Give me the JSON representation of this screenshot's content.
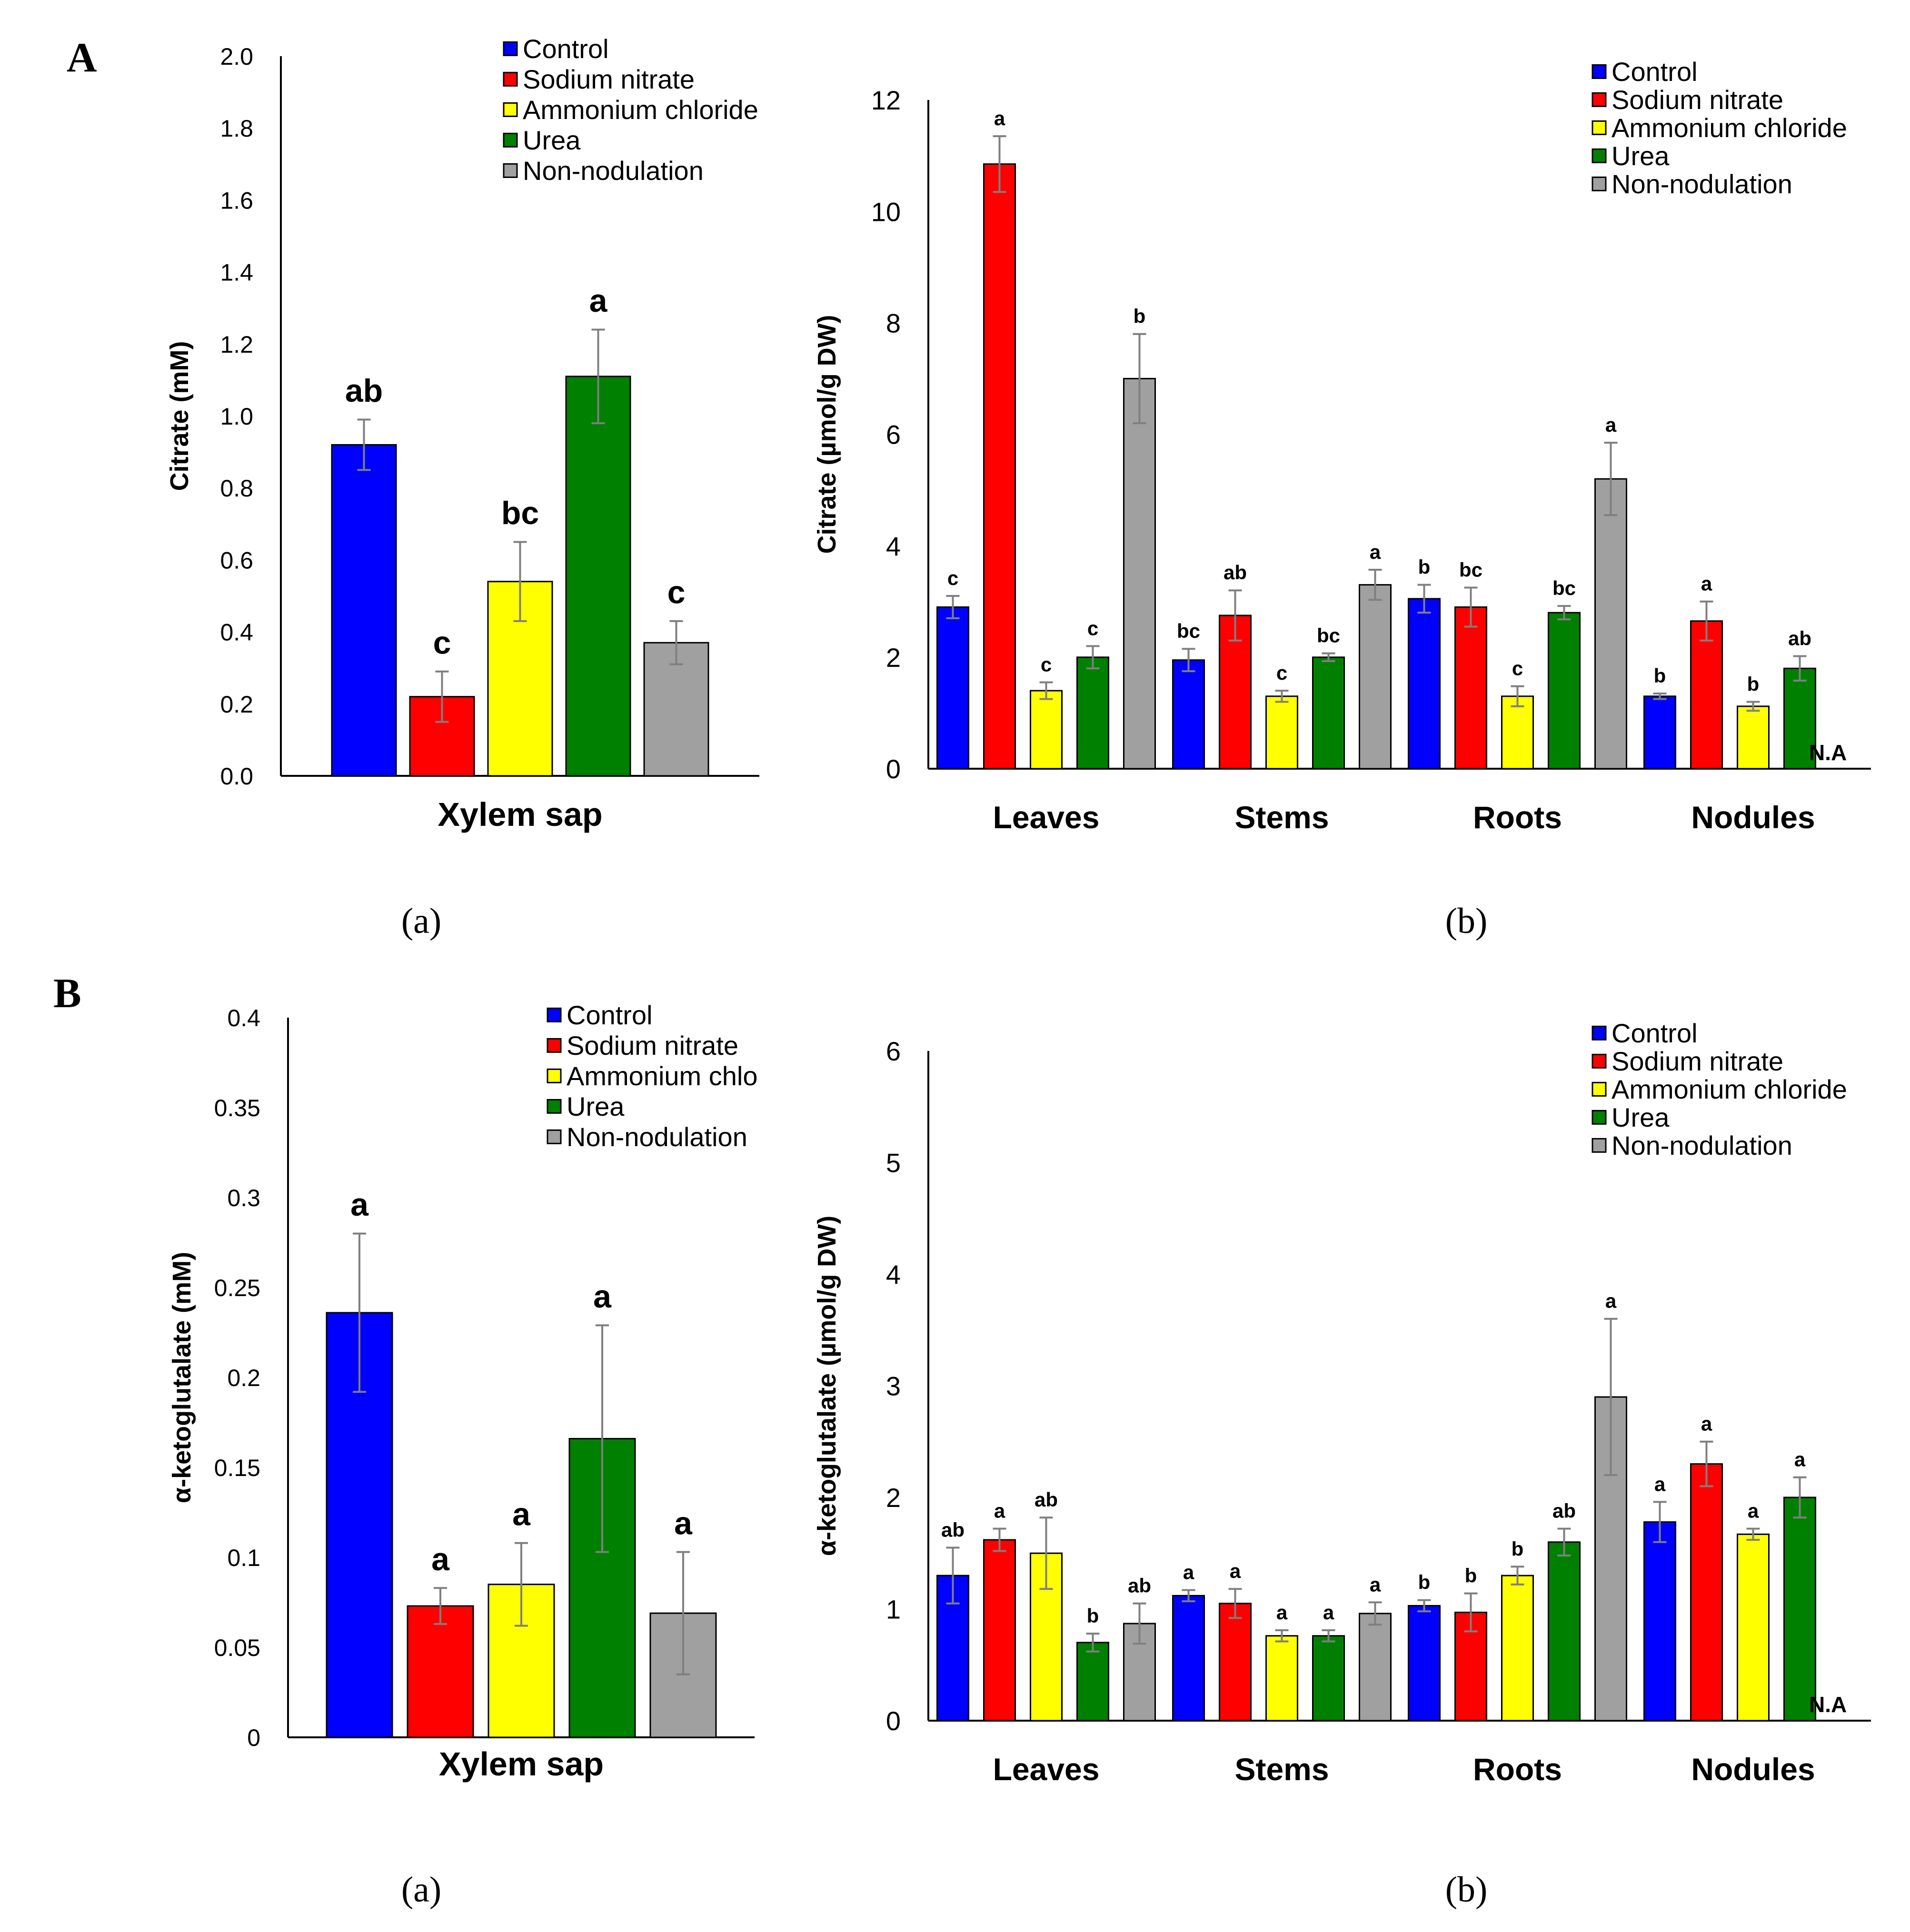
{
  "panels": [
    "A",
    "B"
  ],
  "sublabels": [
    "(a)",
    "(b)",
    "(a)",
    "(b)"
  ],
  "colors": {
    "Control": "#0000ff",
    "Sodium nitrate": "#ff0000",
    "Ammonium chloride": "#ffff00",
    "Urea": "#008000",
    "Non-nodulation": "#a0a0a0",
    "error": "#7f7f7f",
    "axis": "#000000"
  },
  "chart_data": [
    {
      "type": "bar",
      "panel": "A (a)",
      "ylabel": "Citrate (mM)",
      "xlabel": "Xylem sap",
      "ylim": [
        0,
        2.0
      ],
      "yticks": [
        "0.0",
        "0.2",
        "0.4",
        "0.6",
        "0.8",
        "1.0",
        "1.2",
        "1.4",
        "1.6",
        "1.8",
        "2.0"
      ],
      "legend": [
        "Control",
        "Sodium nitrate",
        "Ammonium chloride",
        "Urea",
        "Non-nodulation"
      ],
      "categories": [
        "Xylem sap"
      ],
      "series": [
        {
          "name": "Control",
          "values": [
            0.92
          ],
          "errors": [
            0.07
          ],
          "letters": [
            "ab"
          ]
        },
        {
          "name": "Sodium nitrate",
          "values": [
            0.22
          ],
          "errors": [
            0.07
          ],
          "letters": [
            "c"
          ]
        },
        {
          "name": "Ammonium chloride",
          "values": [
            0.54
          ],
          "errors": [
            0.11
          ],
          "letters": [
            "bc"
          ]
        },
        {
          "name": "Urea",
          "values": [
            1.11
          ],
          "errors": [
            0.13
          ],
          "letters": [
            "a"
          ]
        },
        {
          "name": "Non-nodulation",
          "values": [
            0.37
          ],
          "errors": [
            0.06
          ],
          "letters": [
            "c"
          ]
        }
      ],
      "note": ""
    },
    {
      "type": "bar",
      "panel": "A (b)",
      "ylabel": "Citrate  (µmol/g DW)",
      "xlabel": "",
      "ylim": [
        0,
        12
      ],
      "yticks": [
        "0",
        "2",
        "4",
        "6",
        "8",
        "10",
        "12"
      ],
      "legend": [
        "Control",
        "Sodium nitrate",
        "Ammonium chloride",
        "Urea",
        "Non-nodulation"
      ],
      "categories": [
        "Leaves",
        "Stems",
        "Roots",
        "Nodules"
      ],
      "series": [
        {
          "name": "Control",
          "values": [
            2.9,
            1.95,
            3.05,
            1.3
          ],
          "errors": [
            0.2,
            0.2,
            0.25,
            0.05
          ],
          "letters": [
            "c",
            "bc",
            "b",
            "b"
          ]
        },
        {
          "name": "Sodium nitrate",
          "values": [
            10.85,
            2.75,
            2.9,
            2.65
          ],
          "errors": [
            0.5,
            0.45,
            0.35,
            0.35
          ],
          "letters": [
            "a",
            "ab",
            "bc",
            "a"
          ]
        },
        {
          "name": "Ammonium chloride",
          "values": [
            1.4,
            1.3,
            1.3,
            1.12
          ],
          "errors": [
            0.15,
            0.1,
            0.18,
            0.08
          ],
          "letters": [
            "c",
            "c",
            "c",
            "b"
          ]
        },
        {
          "name": "Urea",
          "values": [
            2.0,
            2.0,
            2.8,
            1.8
          ],
          "errors": [
            0.2,
            0.07,
            0.12,
            0.22
          ],
          "letters": [
            "c",
            "bc",
            "bc",
            "ab"
          ]
        },
        {
          "name": "Non-nodulation",
          "values": [
            7.0,
            3.3,
            5.2,
            null
          ],
          "errors": [
            0.8,
            0.27,
            0.65,
            null
          ],
          "letters": [
            "b",
            "a",
            "a",
            ""
          ]
        }
      ],
      "note": "N.A"
    },
    {
      "type": "bar",
      "panel": "B (a)",
      "ylabel": "α-ketoglutalate  (mM)",
      "xlabel": "Xylem sap",
      "ylim": [
        0,
        0.4
      ],
      "yticks": [
        "0",
        "0.05",
        "0.1",
        "0.15",
        "0.2",
        "0.25",
        "0.3",
        "0.35",
        "0.4"
      ],
      "legend": [
        "Control",
        "Sodium nitrate",
        "Ammonium chlo",
        "Urea",
        "Non-nodulation"
      ],
      "categories": [
        "Xylem sap"
      ],
      "series": [
        {
          "name": "Control",
          "values": [
            0.236
          ],
          "errors": [
            0.044
          ],
          "letters": [
            "a"
          ]
        },
        {
          "name": "Sodium nitrate",
          "values": [
            0.073
          ],
          "errors": [
            0.01
          ],
          "letters": [
            "a"
          ]
        },
        {
          "name": "Ammonium chloride",
          "values": [
            0.085
          ],
          "errors": [
            0.023
          ],
          "letters": [
            "a"
          ]
        },
        {
          "name": "Urea",
          "values": [
            0.166
          ],
          "errors": [
            0.063
          ],
          "letters": [
            "a"
          ]
        },
        {
          "name": "Non-nodulation",
          "values": [
            0.069
          ],
          "errors": [
            0.034
          ],
          "letters": [
            "a"
          ]
        }
      ],
      "note": ""
    },
    {
      "type": "bar",
      "panel": "B (b)",
      "ylabel": "α-ketoglutalate (µmol/g DW)",
      "xlabel": "",
      "ylim": [
        0,
        6
      ],
      "yticks": [
        "0",
        "1",
        "2",
        "3",
        "4",
        "5",
        "6"
      ],
      "legend": [
        "Control",
        "Sodium nitrate",
        "Ammonium chloride",
        "Urea",
        "Non-nodulation"
      ],
      "categories": [
        "Leaves",
        "Stems",
        "Roots",
        "Nodules"
      ],
      "series": [
        {
          "name": "Control",
          "values": [
            1.3,
            1.12,
            1.03,
            1.78
          ],
          "errors": [
            0.25,
            0.05,
            0.05,
            0.18
          ],
          "letters": [
            "ab",
            "a",
            "b",
            "a"
          ]
        },
        {
          "name": "Sodium nitrate",
          "values": [
            1.62,
            1.05,
            0.97,
            2.3
          ],
          "errors": [
            0.1,
            0.13,
            0.17,
            0.2
          ],
          "letters": [
            "a",
            "a",
            "b",
            "a"
          ]
        },
        {
          "name": "Ammonium chloride",
          "values": [
            1.5,
            0.76,
            1.3,
            1.67
          ],
          "errors": [
            0.32,
            0.05,
            0.08,
            0.05
          ],
          "letters": [
            "ab",
            "a",
            "b",
            "a"
          ]
        },
        {
          "name": "Urea",
          "values": [
            0.7,
            0.76,
            1.6,
            2.0
          ],
          "errors": [
            0.08,
            0.05,
            0.12,
            0.18
          ],
          "letters": [
            "b",
            "a",
            "ab",
            "a"
          ]
        },
        {
          "name": "Non-nodulation",
          "values": [
            0.87,
            0.96,
            2.9,
            null
          ],
          "errors": [
            0.18,
            0.1,
            0.7,
            null
          ],
          "letters": [
            "ab",
            "a",
            "a",
            ""
          ]
        }
      ],
      "note": "N.A"
    }
  ]
}
